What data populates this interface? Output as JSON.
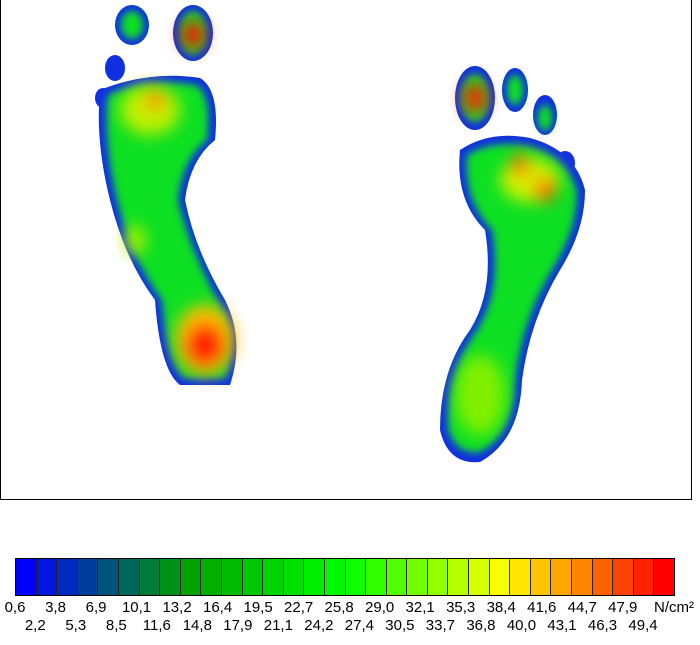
{
  "chart_data": {
    "type": "heatmap",
    "subject": "plantar pressure map, two feet",
    "colorbar": {
      "unit": "N/cm²",
      "ticks": [
        "0,6",
        "2,2",
        "3,8",
        "5,3",
        "6,9",
        "8,5",
        "10,1",
        "11,6",
        "13,2",
        "14,8",
        "16,4",
        "17,9",
        "19,5",
        "21,1",
        "22,7",
        "24,2",
        "25,8",
        "27,4",
        "29,0",
        "30,5",
        "32,1",
        "33,7",
        "35,3",
        "36,8",
        "38,4",
        "40,0",
        "41,6",
        "43,1",
        "44,7",
        "46,3",
        "47,9",
        "49,4"
      ],
      "range": [
        0.6,
        49.4
      ],
      "color_stops": [
        "#0000ff",
        "#00a000",
        "#00ff00",
        "#ffff00",
        "#ff0000"
      ]
    },
    "hotspots": [
      {
        "foot": "left",
        "region": "heel",
        "level": 49.4
      },
      {
        "foot": "left",
        "region": "big toe",
        "level": 49.4
      },
      {
        "foot": "left",
        "region": "forefoot",
        "level": 40.0
      },
      {
        "foot": "right",
        "region": "big toe",
        "level": 47.9
      },
      {
        "foot": "right",
        "region": "forefoot",
        "level": 43.1
      },
      {
        "foot": "right",
        "region": "heel",
        "level": 30.5
      }
    ]
  }
}
